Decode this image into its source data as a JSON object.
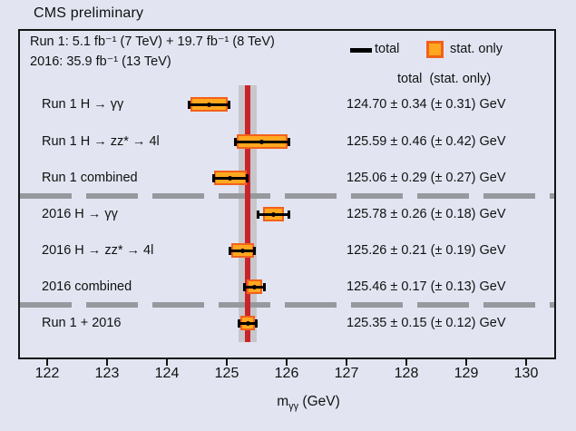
{
  "title": "CMS preliminary",
  "header": {
    "line1": "Run 1: 5.1 fb⁻¹ (7 TeV) + 19.7 fb⁻¹ (8 TeV)",
    "line2": "2016: 35.9 fb⁻¹ (13 TeV)"
  },
  "legend": {
    "total": "total",
    "stat_only": "stat. only"
  },
  "column_header": "total  (stat. only)",
  "axis": {
    "label_prefix": "m",
    "label_sub": "γγ",
    "label_suffix": " (GeV)"
  },
  "colors": {
    "background": "#e2e5f1",
    "frame": "#151515",
    "text": "#111111",
    "stat_box_fill": "#ffa81f",
    "stat_box_border": "#f2611c",
    "total_bar": "#000000",
    "reference_line": "#c9242b",
    "reference_band": "#c7c7cb",
    "separator": "#97999e"
  },
  "chart_data": {
    "type": "scatter",
    "orientation": "horizontal-error-bars",
    "title": "CMS preliminary",
    "xlabel": "m_γγ (GeV)",
    "xlim": [
      121.5,
      130.5
    ],
    "x_ticks": [
      122,
      123,
      124,
      125,
      126,
      127,
      128,
      129,
      130
    ],
    "grid": false,
    "legend_entries": [
      "total",
      "stat. only"
    ],
    "legend_position": "top-right",
    "reference_line": {
      "value": 125.35,
      "band_half_width": 0.15
    },
    "series": [
      {
        "label": "Run 1 H → γγ",
        "value": 124.7,
        "total_err": 0.34,
        "stat_err": 0.31,
        "value_text": "124.70 ± 0.34 (± 0.31) GeV"
      },
      {
        "label": "Run 1 H → zz* → 4l",
        "value": 125.59,
        "total_err": 0.46,
        "stat_err": 0.42,
        "value_text": "125.59 ± 0.46 (± 0.42) GeV"
      },
      {
        "label": "Run 1 combined",
        "value": 125.06,
        "total_err": 0.29,
        "stat_err": 0.27,
        "value_text": "125.06 ± 0.29 (± 0.27) GeV"
      },
      {
        "label": "2016 H → γγ",
        "value": 125.78,
        "total_err": 0.26,
        "stat_err": 0.18,
        "value_text": "125.78 ± 0.26 (± 0.18) GeV"
      },
      {
        "label": "2016 H → zz* → 4l",
        "value": 125.26,
        "total_err": 0.21,
        "stat_err": 0.19,
        "value_text": "125.26 ± 0.21 (± 0.19) GeV"
      },
      {
        "label": "2016 combined",
        "value": 125.46,
        "total_err": 0.17,
        "stat_err": 0.13,
        "value_text": "125.46 ± 0.17 (± 0.13) GeV"
      },
      {
        "label": "Run 1 + 2016",
        "value": 125.35,
        "total_err": 0.15,
        "stat_err": 0.12,
        "value_text": "125.35 ± 0.15 (± 0.12) GeV"
      }
    ],
    "separator_after_rows": [
      2,
      5
    ]
  }
}
